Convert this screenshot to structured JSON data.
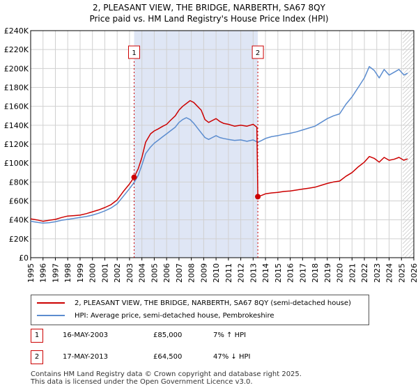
{
  "header": {
    "title_line1": "2, PLEASANT VIEW, THE BRIDGE, NARBERTH, SA67 8QY",
    "title_line2": "Price paid vs. HM Land Registry's House Price Index (HPI)"
  },
  "colors": {
    "property_line": "#cc0000",
    "hpi_line": "#5b8ccf",
    "shade": "#dfe6f5",
    "grid": "#d0d0d0",
    "marker_dash": "#cc0000",
    "hatch": "#aaaaaa"
  },
  "chart_data": {
    "type": "line",
    "xlim": [
      1995,
      2026
    ],
    "ylim": [
      0,
      240000
    ],
    "x_ticks": [
      "1995",
      "1996",
      "1997",
      "1998",
      "1999",
      "2000",
      "2001",
      "2002",
      "2003",
      "2004",
      "2005",
      "2006",
      "2007",
      "2008",
      "2009",
      "2010",
      "2011",
      "2012",
      "2013",
      "2014",
      "2015",
      "2016",
      "2017",
      "2018",
      "2019",
      "2020",
      "2021",
      "2022",
      "2023",
      "2024",
      "2025",
      "2026"
    ],
    "y_ticks": [
      {
        "value": 0,
        "label": "£0"
      },
      {
        "value": 20000,
        "label": "£20K"
      },
      {
        "value": 40000,
        "label": "£40K"
      },
      {
        "value": 60000,
        "label": "£60K"
      },
      {
        "value": 80000,
        "label": "£80K"
      },
      {
        "value": 100000,
        "label": "£100K"
      },
      {
        "value": 120000,
        "label": "£120K"
      },
      {
        "value": 140000,
        "label": "£140K"
      },
      {
        "value": 160000,
        "label": "£160K"
      },
      {
        "value": 180000,
        "label": "£180K"
      },
      {
        "value": 200000,
        "label": "£200K"
      },
      {
        "value": 220000,
        "label": "£220K"
      },
      {
        "value": 240000,
        "label": "£240K"
      }
    ],
    "shaded_range": [
      2003.37,
      2013.38
    ],
    "hatched_from": 2025.1,
    "series": [
      {
        "name": "2, PLEASANT VIEW, THE BRIDGE, NARBERTH, SA67 8QY (semi-detached house)",
        "color": "#cc0000",
        "points": [
          [
            1995,
            41000
          ],
          [
            1995.5,
            40000
          ],
          [
            1996,
            38500
          ],
          [
            1996.5,
            39500
          ],
          [
            1997,
            40500
          ],
          [
            1997.5,
            42500
          ],
          [
            1998,
            44000
          ],
          [
            1998.5,
            44500
          ],
          [
            1999,
            45000
          ],
          [
            1999.5,
            46500
          ],
          [
            2000,
            48500
          ],
          [
            2000.5,
            50500
          ],
          [
            2001,
            53000
          ],
          [
            2001.5,
            56000
          ],
          [
            2002,
            61000
          ],
          [
            2002.5,
            70000
          ],
          [
            2003,
            78000
          ],
          [
            2003.37,
            85000
          ],
          [
            2003.7,
            94000
          ],
          [
            2004,
            106000
          ],
          [
            2004.3,
            122000
          ],
          [
            2004.7,
            131000
          ],
          [
            2005,
            134000
          ],
          [
            2005.3,
            136000
          ],
          [
            2005.7,
            139000
          ],
          [
            2006,
            141000
          ],
          [
            2006.3,
            145000
          ],
          [
            2006.7,
            150000
          ],
          [
            2007,
            156000
          ],
          [
            2007.3,
            160000
          ],
          [
            2007.6,
            163000
          ],
          [
            2007.9,
            166000
          ],
          [
            2008.2,
            164000
          ],
          [
            2008.5,
            160000
          ],
          [
            2008.8,
            156000
          ],
          [
            2009.1,
            146000
          ],
          [
            2009.4,
            143000
          ],
          [
            2009.7,
            145000
          ],
          [
            2010,
            147000
          ],
          [
            2010.3,
            144000
          ],
          [
            2010.6,
            142000
          ],
          [
            2011,
            141000
          ],
          [
            2011.5,
            139000
          ],
          [
            2012,
            140000
          ],
          [
            2012.5,
            139000
          ],
          [
            2013,
            141000
          ],
          [
            2013.3,
            138000
          ],
          [
            2013.38,
            64500
          ],
          [
            2013.7,
            66000
          ],
          [
            2014,
            67500
          ],
          [
            2014.5,
            68500
          ],
          [
            2015,
            69000
          ],
          [
            2015.5,
            70000
          ],
          [
            2016,
            70500
          ],
          [
            2016.5,
            71500
          ],
          [
            2017,
            72500
          ],
          [
            2017.5,
            73500
          ],
          [
            2018,
            74500
          ],
          [
            2018.5,
            76500
          ],
          [
            2019,
            78500
          ],
          [
            2019.5,
            80000
          ],
          [
            2020,
            81000
          ],
          [
            2020.5,
            86000
          ],
          [
            2021,
            90000
          ],
          [
            2021.5,
            96000
          ],
          [
            2022,
            101000
          ],
          [
            2022.4,
            107000
          ],
          [
            2022.8,
            105000
          ],
          [
            2023.2,
            101000
          ],
          [
            2023.6,
            106000
          ],
          [
            2024,
            103000
          ],
          [
            2024.4,
            104000
          ],
          [
            2024.8,
            106000
          ],
          [
            2025.2,
            103000
          ],
          [
            2025.5,
            104500
          ]
        ]
      },
      {
        "name": "HPI: Average price, semi-detached house, Pembrokeshire",
        "color": "#5b8ccf",
        "points": [
          [
            1995,
            38500
          ],
          [
            1995.5,
            37500
          ],
          [
            1996,
            36500
          ],
          [
            1996.5,
            37000
          ],
          [
            1997,
            38000
          ],
          [
            1997.5,
            39500
          ],
          [
            1998,
            40500
          ],
          [
            1998.5,
            41500
          ],
          [
            1999,
            42500
          ],
          [
            1999.5,
            43500
          ],
          [
            2000,
            45000
          ],
          [
            2000.5,
            47000
          ],
          [
            2001,
            49500
          ],
          [
            2001.5,
            52500
          ],
          [
            2002,
            57000
          ],
          [
            2002.5,
            65000
          ],
          [
            2003,
            73000
          ],
          [
            2003.37,
            79500
          ],
          [
            2003.7,
            87000
          ],
          [
            2004,
            98000
          ],
          [
            2004.3,
            110000
          ],
          [
            2004.7,
            117000
          ],
          [
            2005,
            121000
          ],
          [
            2005.3,
            124000
          ],
          [
            2005.7,
            128000
          ],
          [
            2006,
            131000
          ],
          [
            2006.3,
            134000
          ],
          [
            2006.7,
            138000
          ],
          [
            2007,
            143000
          ],
          [
            2007.3,
            146000
          ],
          [
            2007.6,
            148000
          ],
          [
            2007.9,
            146000
          ],
          [
            2008.2,
            142000
          ],
          [
            2008.5,
            137000
          ],
          [
            2008.8,
            132000
          ],
          [
            2009.1,
            127000
          ],
          [
            2009.4,
            125000
          ],
          [
            2009.7,
            127000
          ],
          [
            2010,
            129000
          ],
          [
            2010.3,
            127000
          ],
          [
            2010.6,
            126000
          ],
          [
            2011,
            125000
          ],
          [
            2011.5,
            124000
          ],
          [
            2012,
            124500
          ],
          [
            2012.5,
            123000
          ],
          [
            2013,
            124500
          ],
          [
            2013.38,
            122000
          ],
          [
            2013.7,
            124000
          ],
          [
            2014,
            126000
          ],
          [
            2014.5,
            128000
          ],
          [
            2015,
            129000
          ],
          [
            2015.5,
            130500
          ],
          [
            2016,
            131500
          ],
          [
            2016.5,
            133000
          ],
          [
            2017,
            135000
          ],
          [
            2017.5,
            137000
          ],
          [
            2018,
            139000
          ],
          [
            2018.5,
            143000
          ],
          [
            2019,
            147000
          ],
          [
            2019.5,
            150000
          ],
          [
            2020,
            152000
          ],
          [
            2020.5,
            162000
          ],
          [
            2021,
            170000
          ],
          [
            2021.5,
            180000
          ],
          [
            2022,
            190000
          ],
          [
            2022.4,
            202000
          ],
          [
            2022.8,
            198000
          ],
          [
            2023.2,
            190000
          ],
          [
            2023.6,
            199000
          ],
          [
            2024,
            193000
          ],
          [
            2024.4,
            196000
          ],
          [
            2024.8,
            199000
          ],
          [
            2025.2,
            193000
          ],
          [
            2025.5,
            195000
          ]
        ]
      }
    ],
    "sales": [
      {
        "label": "1",
        "x": 2003.37,
        "value": 85000,
        "date": "16-MAY-2003",
        "price": "£85,000",
        "hpi_change": "7% ↑ HPI"
      },
      {
        "label": "2",
        "x": 2013.38,
        "value": 64500,
        "date": "17-MAY-2013",
        "price": "£64,500",
        "hpi_change": "47% ↓ HPI"
      }
    ]
  },
  "legend": {
    "property_label": "2, PLEASANT VIEW, THE BRIDGE, NARBERTH, SA67 8QY (semi-detached house)",
    "hpi_label": "HPI: Average price, semi-detached house, Pembrokeshire"
  },
  "footer": {
    "line1": "Contains HM Land Registry data © Crown copyright and database right 2025.",
    "line2": "This data is licensed under the Open Government Licence v3.0."
  }
}
